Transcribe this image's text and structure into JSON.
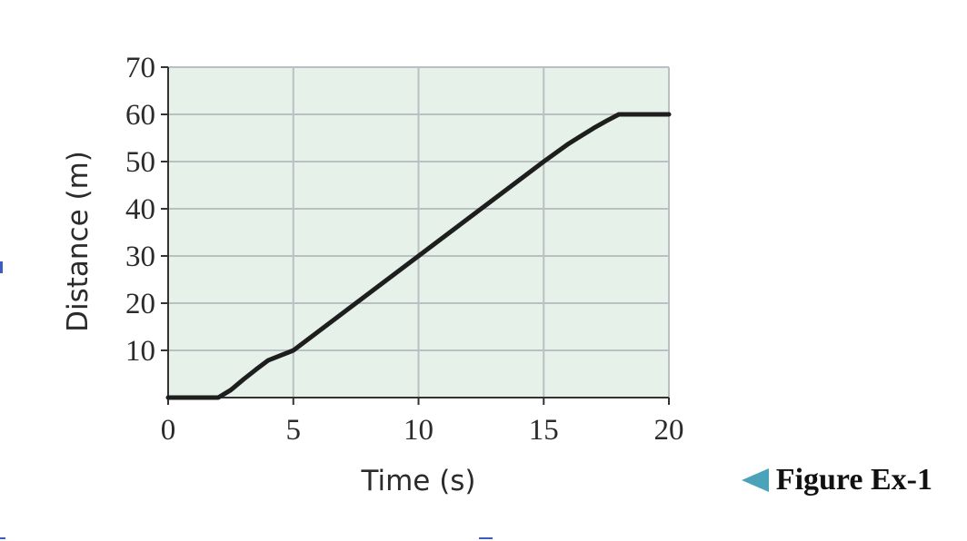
{
  "chart_data": {
    "type": "line",
    "xlabel": "Time (s)",
    "ylabel": "Distance (m)",
    "xlim": [
      0,
      20
    ],
    "ylim": [
      0,
      70
    ],
    "xticks": [
      0,
      5,
      10,
      15,
      20
    ],
    "yticks": [
      10,
      20,
      30,
      40,
      50,
      60,
      70
    ],
    "grid": true,
    "colors": {
      "plot_background": "#e6f2e9",
      "grid": "#b9c0c4",
      "line": "#1e1e1e",
      "caption_arrow": "#4aa3b8"
    },
    "series": [
      {
        "x": [
          0,
          2,
          2.5,
          3,
          3.5,
          4,
          5,
          10,
          15,
          16,
          17,
          17.5,
          18,
          20
        ],
        "y": [
          0,
          0,
          1.6,
          3.8,
          5.9,
          7.9,
          10,
          30,
          50,
          53.8,
          57.1,
          58.6,
          60,
          60
        ]
      }
    ]
  },
  "caption": {
    "text": "Figure Ex-1"
  }
}
